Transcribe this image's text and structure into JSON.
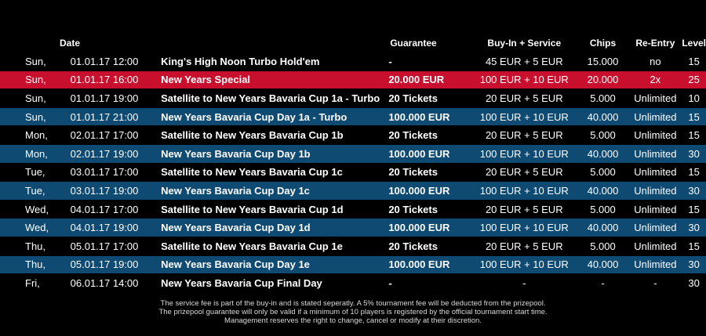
{
  "header": {
    "date": "Date",
    "guarantee": "Guarantee",
    "buyin": "Buy-In + Service",
    "chips": "Chips",
    "reentry": "Re-Entry",
    "level": "Level"
  },
  "rows": [
    {
      "day": "Sun,",
      "date": "01.01.17 12:00",
      "name": "King's High Noon Turbo Hold'em",
      "guarantee": "-",
      "buyin": "45 EUR + 5 EUR",
      "chips": "15.000",
      "reentry": "no",
      "level": "15",
      "style": "plain"
    },
    {
      "day": "Sun,",
      "date": "01.01.17 16:00",
      "name": "New Years Special",
      "guarantee": "20.000 EUR",
      "buyin": "100 EUR + 10 EUR",
      "chips": "20.000",
      "reentry": "2x",
      "level": "25",
      "style": "red"
    },
    {
      "day": "Sun,",
      "date": "01.01.17 19:00",
      "name": "Satellite to New Years Bavaria Cup 1a - Turbo",
      "guarantee": "20 Tickets",
      "buyin": "20 EUR + 5 EUR",
      "chips": "5.000",
      "reentry": "Unlimited",
      "level": "10",
      "style": "plain"
    },
    {
      "day": "Sun,",
      "date": "01.01.17 21:00",
      "name": "New Years Bavaria Cup Day 1a - Turbo",
      "guarantee": "100.000 EUR",
      "buyin": "100 EUR + 10 EUR",
      "chips": "40.000",
      "reentry": "Unlimited",
      "level": "15",
      "style": "blue"
    },
    {
      "day": "Mon,",
      "date": "02.01.17 17:00",
      "name": "Satellite to New Years Bavaria Cup 1b",
      "guarantee": "20 Tickets",
      "buyin": "20 EUR + 5 EUR",
      "chips": "5.000",
      "reentry": "Unlimited",
      "level": "15",
      "style": "plain"
    },
    {
      "day": "Mon,",
      "date": "02.01.17 19:00",
      "name": "New Years Bavaria Cup Day 1b",
      "guarantee": "100.000 EUR",
      "buyin": "100 EUR + 10 EUR",
      "chips": "40.000",
      "reentry": "Unlimited",
      "level": "30",
      "style": "blue"
    },
    {
      "day": "Tue,",
      "date": "03.01.17 17:00",
      "name": "Satellite to New Years Bavaria Cup 1c",
      "guarantee": "20 Tickets",
      "buyin": "20 EUR + 5 EUR",
      "chips": "5.000",
      "reentry": "Unlimited",
      "level": "15",
      "style": "plain"
    },
    {
      "day": "Tue,",
      "date": "03.01.17 19:00",
      "name": "New Years Bavaria Cup Day 1c",
      "guarantee": "100.000 EUR",
      "buyin": "100 EUR + 10 EUR",
      "chips": "40.000",
      "reentry": "Unlimited",
      "level": "30",
      "style": "blue"
    },
    {
      "day": "Wed,",
      "date": "04.01.17 17:00",
      "name": "Satellite to New Years Bavaria Cup 1d",
      "guarantee": "20 Tickets",
      "buyin": "20 EUR + 5 EUR",
      "chips": "5.000",
      "reentry": "Unlimited",
      "level": "15",
      "style": "plain"
    },
    {
      "day": "Wed,",
      "date": "04.01.17 19:00",
      "name": "New Years Bavaria Cup Day 1d",
      "guarantee": "100.000 EUR",
      "buyin": "100 EUR + 10 EUR",
      "chips": "40.000",
      "reentry": "Unlimited",
      "level": "30",
      "style": "blue"
    },
    {
      "day": "Thu,",
      "date": "05.01.17 17:00",
      "name": "Satellite to New Years Bavaria Cup 1e",
      "guarantee": "20 Tickets",
      "buyin": "20 EUR + 5 EUR",
      "chips": "5.000",
      "reentry": "Unlimited",
      "level": "15",
      "style": "plain"
    },
    {
      "day": "Thu,",
      "date": "05.01.17 19:00",
      "name": "New Years Bavaria Cup Day 1e",
      "guarantee": "100.000 EUR",
      "buyin": "100 EUR + 10 EUR",
      "chips": "40.000",
      "reentry": "Unlimited",
      "level": "30",
      "style": "blue"
    },
    {
      "day": "Fri,",
      "date": "06.01.17 14:00",
      "name": "New Years Bavaria Cup Final Day",
      "guarantee": "-",
      "buyin": "-",
      "chips": "-",
      "reentry": "-",
      "level": "30",
      "style": "plain"
    }
  ],
  "notes": [
    "The service fee is part of the buy-in and is stated seperatly. A 5% tournament fee will be deducted from the prizepool.",
    "The prizepool guarantee will only be valid if a minimum of 10 players is registered by the official tournament start time.",
    "Management reserves the right to change, cancel or modify at their discretion."
  ],
  "colors": {
    "background": "#000000",
    "highlight_red": "#c8102e",
    "highlight_blue": "#0f4a72"
  }
}
